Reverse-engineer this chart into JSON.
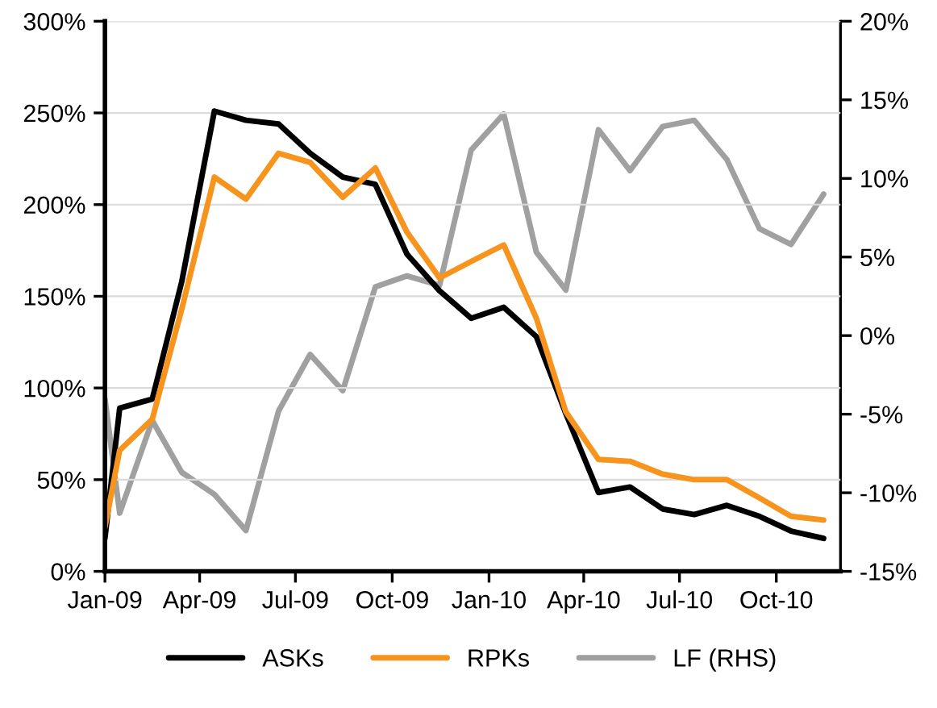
{
  "chart_data": {
    "type": "line",
    "xlim": [
      "2009-01-01",
      "2010-12-01"
    ],
    "xticks": [
      {
        "value": "2009-01-01",
        "label": "Jan-09"
      },
      {
        "value": "2009-04-01",
        "label": "Apr-09"
      },
      {
        "value": "2009-07-01",
        "label": "Jul-09"
      },
      {
        "value": "2009-10-01",
        "label": "Oct-09"
      },
      {
        "value": "2010-01-01",
        "label": "Jan-10"
      },
      {
        "value": "2010-04-01",
        "label": "Apr-10"
      },
      {
        "value": "2010-07-01",
        "label": "Jul-10"
      },
      {
        "value": "2010-10-01",
        "label": "Oct-10"
      }
    ],
    "ylim": [
      0,
      300
    ],
    "yticks": [
      {
        "value": 0,
        "label": "0%"
      },
      {
        "value": 50,
        "label": "50%"
      },
      {
        "value": 100,
        "label": "100%"
      },
      {
        "value": 150,
        "label": "150%"
      },
      {
        "value": 200,
        "label": "200%"
      },
      {
        "value": 250,
        "label": "250%"
      },
      {
        "value": 300,
        "label": "300%"
      }
    ],
    "y2lim": [
      -15,
      20
    ],
    "y2ticks": [
      {
        "value": -15,
        "label": "-15%"
      },
      {
        "value": -10,
        "label": "-10%"
      },
      {
        "value": -5,
        "label": "-5%"
      },
      {
        "value": 0,
        "label": "0%"
      },
      {
        "value": 5,
        "label": "5%"
      },
      {
        "value": 10,
        "label": "10%"
      },
      {
        "value": 15,
        "label": "15%"
      },
      {
        "value": 20,
        "label": "20%"
      }
    ],
    "grid": "y",
    "legend": "bottom",
    "x": [
      "2009-01-01",
      "2009-01-15",
      "2009-02-15",
      "2009-03-15",
      "2009-04-15",
      "2009-05-15",
      "2009-06-15",
      "2009-07-15",
      "2009-08-15",
      "2009-09-15",
      "2009-10-15",
      "2009-11-15",
      "2009-12-15",
      "2010-01-15",
      "2010-02-15",
      "2010-03-15",
      "2010-04-15",
      "2010-05-15",
      "2010-06-15",
      "2010-07-15",
      "2010-08-15",
      "2010-09-15",
      "2010-10-15",
      "2010-11-15"
    ],
    "series": [
      {
        "name": "ASKs",
        "color": "#000000",
        "values": [
          18,
          89,
          94,
          158,
          251,
          246,
          244,
          228,
          215,
          211,
          173,
          153,
          138,
          144,
          128,
          86,
          43,
          46,
          34,
          31,
          36,
          30,
          22,
          18
        ]
      },
      {
        "name": "RPKs",
        "color": "#f7941d",
        "values": [
          24,
          66,
          83,
          143,
          215,
          203,
          228,
          223,
          204,
          220,
          185,
          160,
          169,
          178,
          138,
          87,
          61,
          60,
          53,
          50,
          50,
          40,
          30,
          28
        ]
      },
      {
        "name": "LF (RHS)",
        "color": "#a0a0a0",
        "axis": "y2",
        "values": [
          -4.0,
          -11.3,
          -5.4,
          -8.7,
          -10.1,
          -12.4,
          -4.8,
          -1.2,
          -3.5,
          3.1,
          3.8,
          3.2,
          11.8,
          14.1,
          5.3,
          2.9,
          13.1,
          10.5,
          13.3,
          13.7,
          11.2,
          6.8,
          5.8,
          9.0
        ]
      }
    ]
  }
}
